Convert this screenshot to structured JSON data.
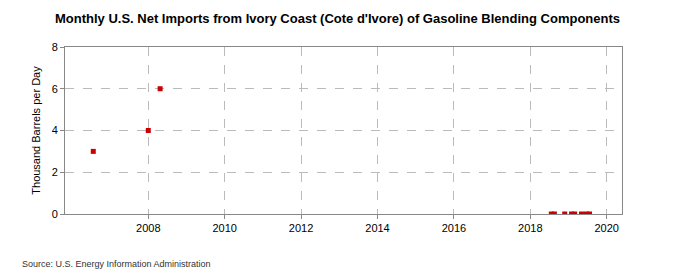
{
  "chart_data": {
    "type": "scatter",
    "title": "Monthly U.S. Net Imports from Ivory Coast (Cote d'Ivore) of Gasoline Blending Components",
    "y_label": "Thousand Barrels per Day",
    "source": "Source: U.S. Energy Information Administration",
    "x": [
      2006.56,
      2008.0,
      2008.31,
      2018.55,
      2018.63,
      2018.9,
      2019.08,
      2019.16,
      2019.34,
      2019.47,
      2019.55
    ],
    "values": [
      3,
      4,
      6,
      0,
      0,
      0,
      0,
      0,
      0,
      0,
      0
    ],
    "color": "#cc0000",
    "marker": "square",
    "xlim": [
      2005.82,
      2020.4
    ],
    "xticks": [
      2008,
      2010,
      2012,
      2014,
      2016,
      2018,
      2020
    ],
    "ylim": [
      0,
      8
    ],
    "yticks": [
      0,
      2,
      4,
      6,
      8
    ],
    "grid": true
  }
}
